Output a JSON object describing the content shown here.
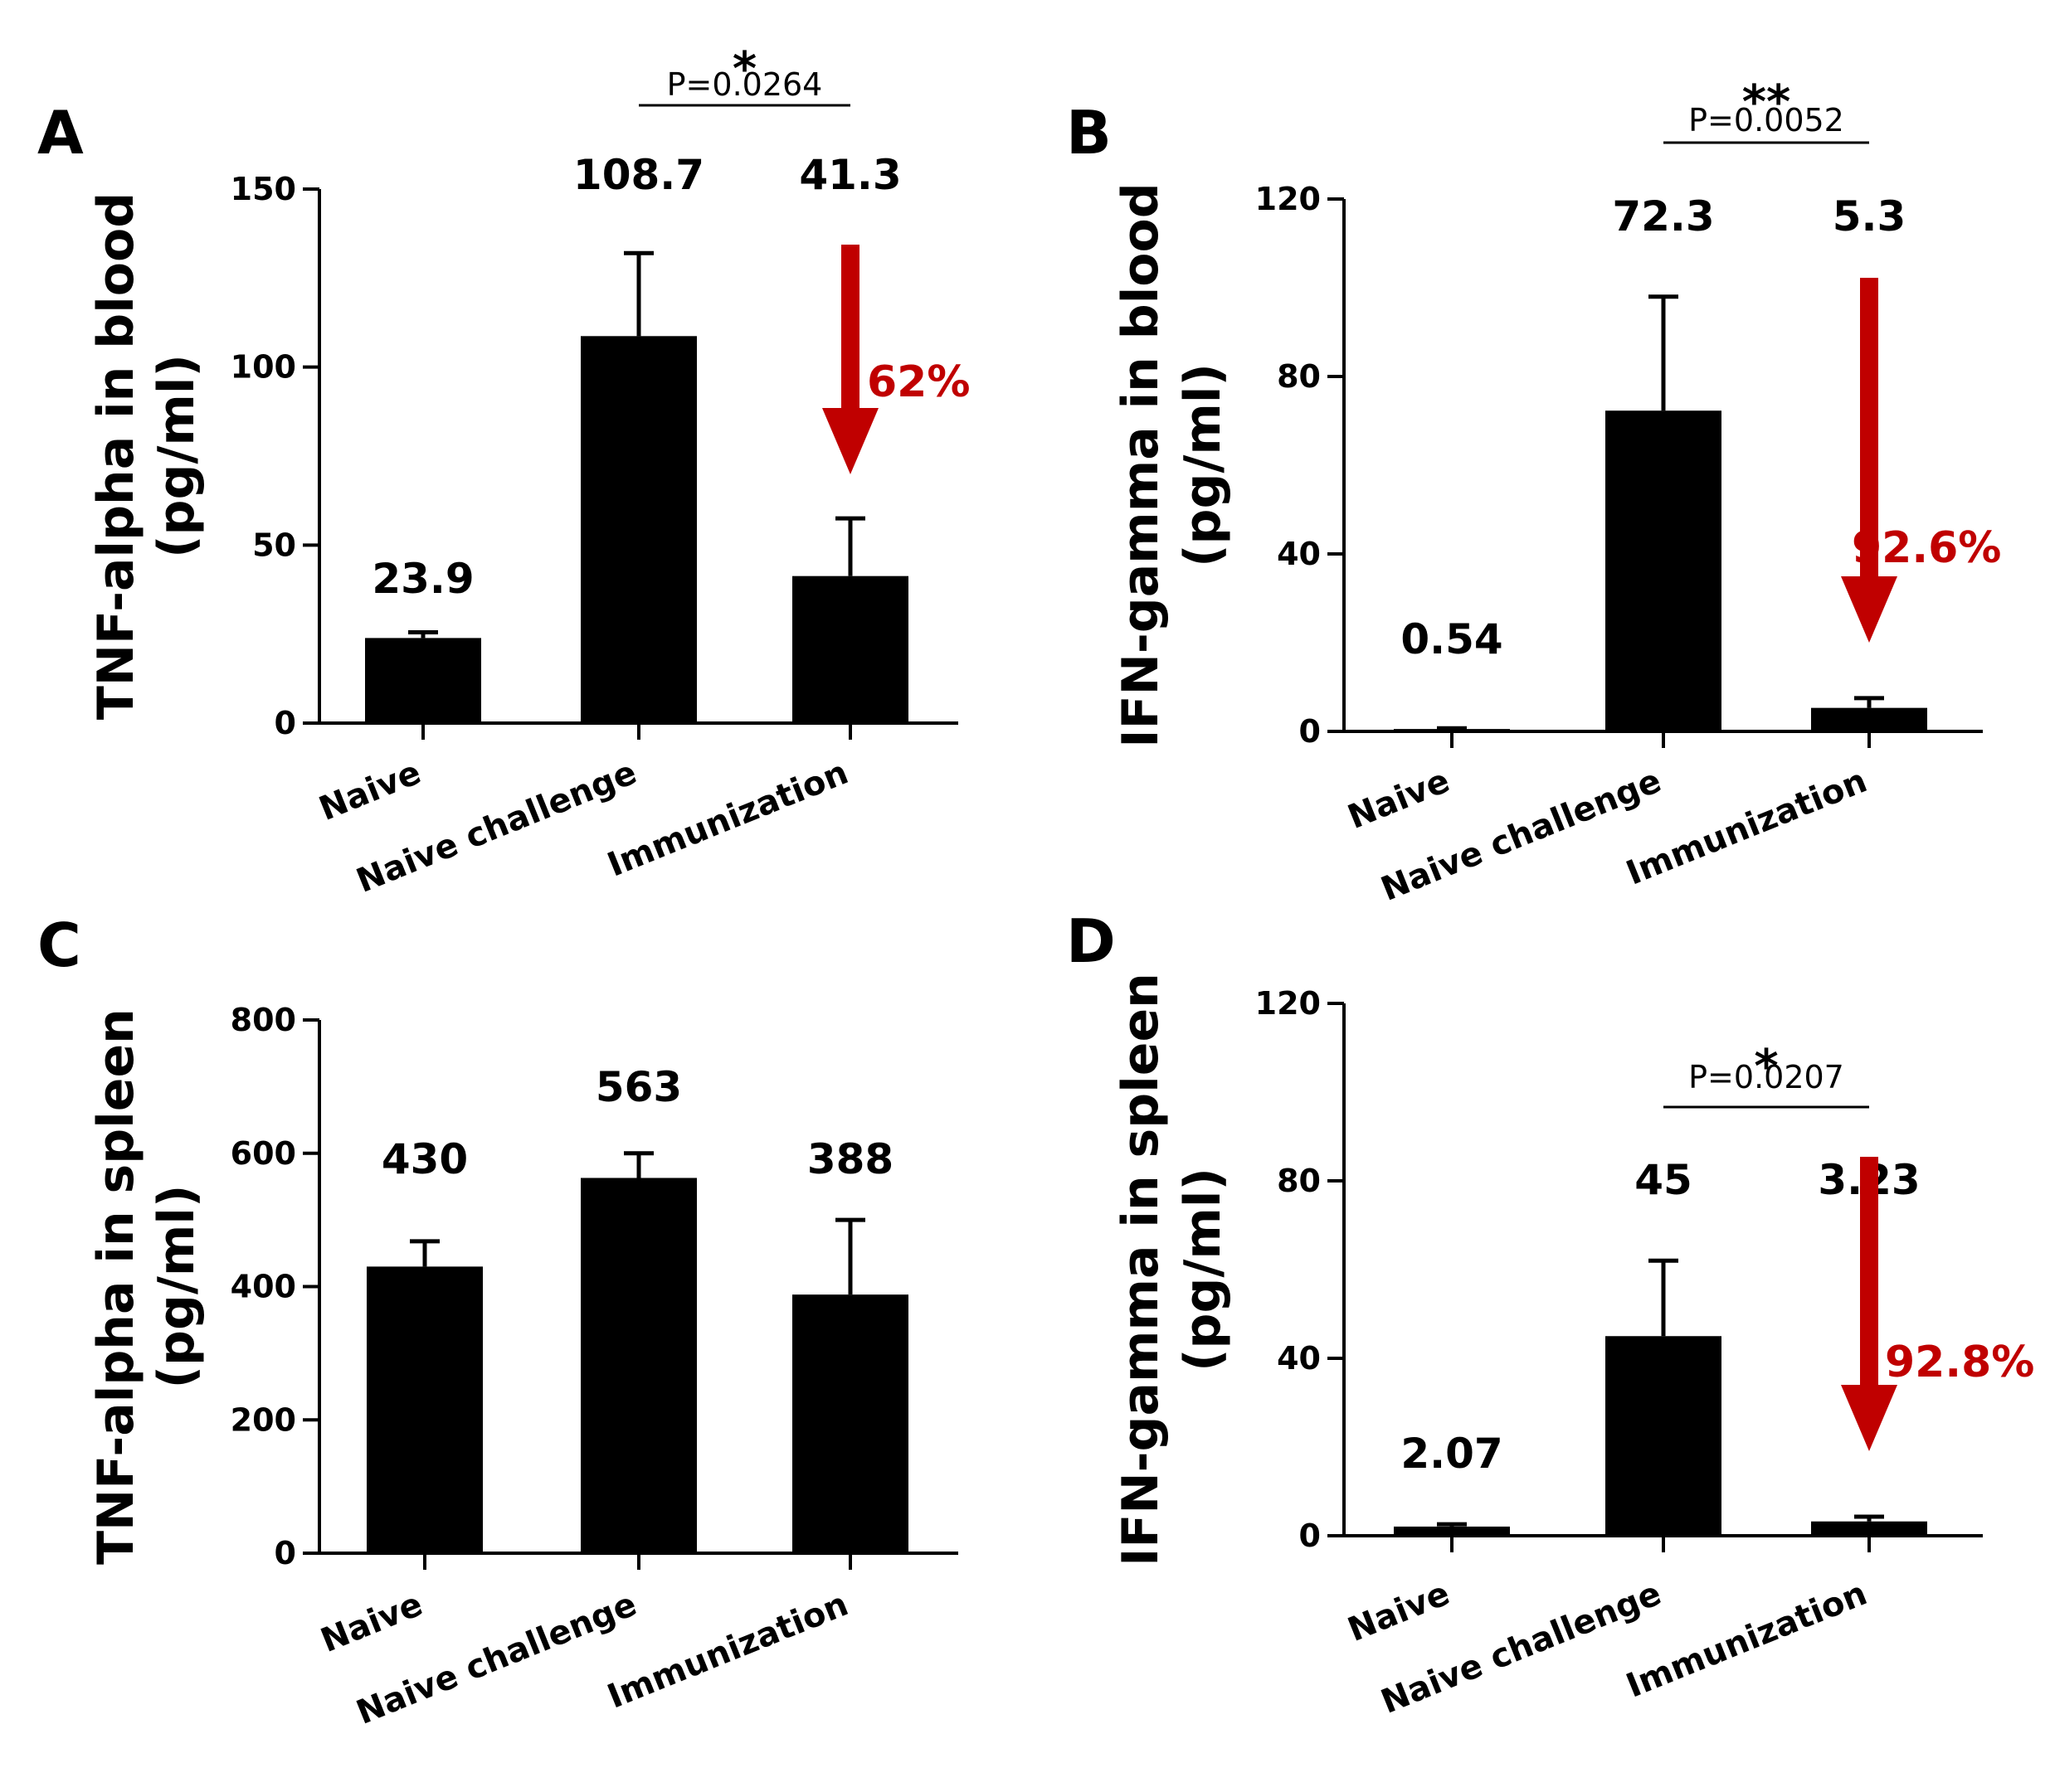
{
  "colors": {
    "bar": "#000000",
    "accent": "#c00000"
  },
  "chart_data": [
    {
      "type": "bar",
      "panel": "A",
      "ylabel_line1": "TNF-alpha in blood",
      "ylabel_line2": "(pg/ml)",
      "categories": [
        "Naive",
        "Naive challenge",
        "Immunization"
      ],
      "values": [
        23.9,
        108.7,
        41.3
      ],
      "value_labels": [
        "23.9",
        "108.7",
        "41.3"
      ],
      "error_upper": [
        25.5,
        132,
        57.5
      ],
      "ylim": [
        0,
        150
      ],
      "yticks": [
        0,
        50,
        100,
        150
      ],
      "ytick_labels": [
        "0",
        "50",
        "100",
        "150"
      ],
      "significance": {
        "stars": "*",
        "p_text": "P=0.0264",
        "from": 1,
        "to": 2
      },
      "reduction": {
        "text": "62%",
        "bar": 2
      }
    },
    {
      "type": "bar",
      "panel": "B",
      "ylabel_line1": "IFN-gamma in blood",
      "ylabel_line2": "(pg/ml)",
      "categories": [
        "Naive",
        "Naive challenge",
        "Immunization"
      ],
      "values": [
        0.54,
        72.3,
        5.3
      ],
      "value_labels": [
        "0.54",
        "72.3",
        "5.3"
      ],
      "error_upper": [
        0.7,
        98,
        7.5
      ],
      "ylim": [
        0,
        120
      ],
      "yticks": [
        0,
        40,
        80,
        120
      ],
      "ytick_labels": [
        "0",
        "40",
        "80",
        "120"
      ],
      "significance": {
        "stars": "**",
        "p_text": "P=0.0052",
        "from": 1,
        "to": 2
      },
      "reduction": {
        "text": "92.6%",
        "bar": 2
      }
    },
    {
      "type": "bar",
      "panel": "C",
      "ylabel_line1": "TNF-alpha in spleen",
      "ylabel_line2": "(pg/ml)",
      "categories": [
        "Naive",
        "Naive challenge",
        "Immunization"
      ],
      "values": [
        430,
        563,
        388
      ],
      "value_labels": [
        "430",
        "563",
        "388"
      ],
      "error_upper": [
        468,
        600,
        500
      ],
      "ylim": [
        0,
        800
      ],
      "yticks": [
        0,
        200,
        400,
        600,
        800
      ],
      "ytick_labels": [
        "0",
        "200",
        "400",
        "600",
        "800"
      ]
    },
    {
      "type": "bar",
      "panel": "D",
      "ylabel_line1": "IFN-gamma in spleen",
      "ylabel_line2": "(pg/ml)",
      "categories": [
        "Naive",
        "Naive challenge",
        "Immunization"
      ],
      "values": [
        2.07,
        45,
        3.23
      ],
      "value_labels": [
        "2.07",
        "45",
        "3.23"
      ],
      "error_upper": [
        2.6,
        62,
        4.3
      ],
      "ylim": [
        0,
        120
      ],
      "yticks": [
        0,
        40,
        80,
        120
      ],
      "ytick_labels": [
        "0",
        "40",
        "80",
        "120"
      ],
      "significance": {
        "stars": "*",
        "p_text": "P=0.0207",
        "from": 1,
        "to": 2
      },
      "reduction": {
        "text": "92.8%",
        "bar": 2
      }
    }
  ]
}
